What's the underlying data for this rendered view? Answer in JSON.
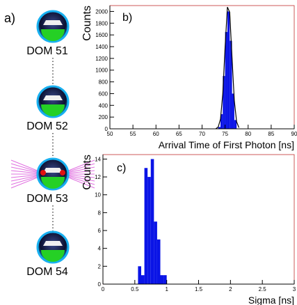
{
  "diagram": {
    "label": "a)",
    "doms": [
      "DOM 51",
      "DOM 52",
      "DOM 53",
      "DOM 54"
    ]
  },
  "chart_data": [
    {
      "type": "histogram",
      "label": "b)",
      "xlabel": "Arrival Time of First Photon [ns]",
      "ylabel": "Counts",
      "color": "#0a14e6",
      "bins": [
        73.5,
        74,
        74.5,
        75,
        75.5,
        76,
        76.5,
        77,
        77.5
      ],
      "counts": [
        30,
        250,
        900,
        1650,
        2000,
        1500,
        600,
        150
      ],
      "fit": {
        "color": "#000000",
        "x": [
          73,
          73.5,
          74,
          74.5,
          75,
          75.5,
          76,
          76.5,
          77,
          77.5,
          78
        ],
        "values": [
          3,
          29,
          165,
          598,
          1391,
          2075,
          1985,
          1217,
          479,
          120,
          20
        ]
      },
      "xlim": [
        50,
        90
      ],
      "ylim": [
        0,
        2100
      ],
      "xticks": [
        50,
        55,
        60,
        65,
        70,
        75,
        80,
        85,
        90
      ],
      "yticks": [
        0,
        200,
        400,
        600,
        800,
        1000,
        1200,
        1400,
        1600,
        1800,
        2000
      ]
    },
    {
      "type": "histogram",
      "label": "c)",
      "xlabel": "Sigma [ns]",
      "ylabel": "Counts",
      "color": "#0a14e6",
      "bins": [
        0.55,
        0.6,
        0.65,
        0.7,
        0.75,
        0.8,
        0.85,
        0.9,
        0.95,
        1.0
      ],
      "counts": [
        2,
        1,
        13,
        12,
        14,
        7,
        5,
        1,
        1
      ],
      "xlim": [
        0,
        3
      ],
      "ylim": [
        0,
        14.5
      ],
      "xticks": [
        0,
        0.5,
        1,
        1.5,
        2,
        2.5,
        3
      ],
      "yticks": [
        0,
        2,
        4,
        6,
        8,
        10,
        12,
        14
      ]
    }
  ]
}
